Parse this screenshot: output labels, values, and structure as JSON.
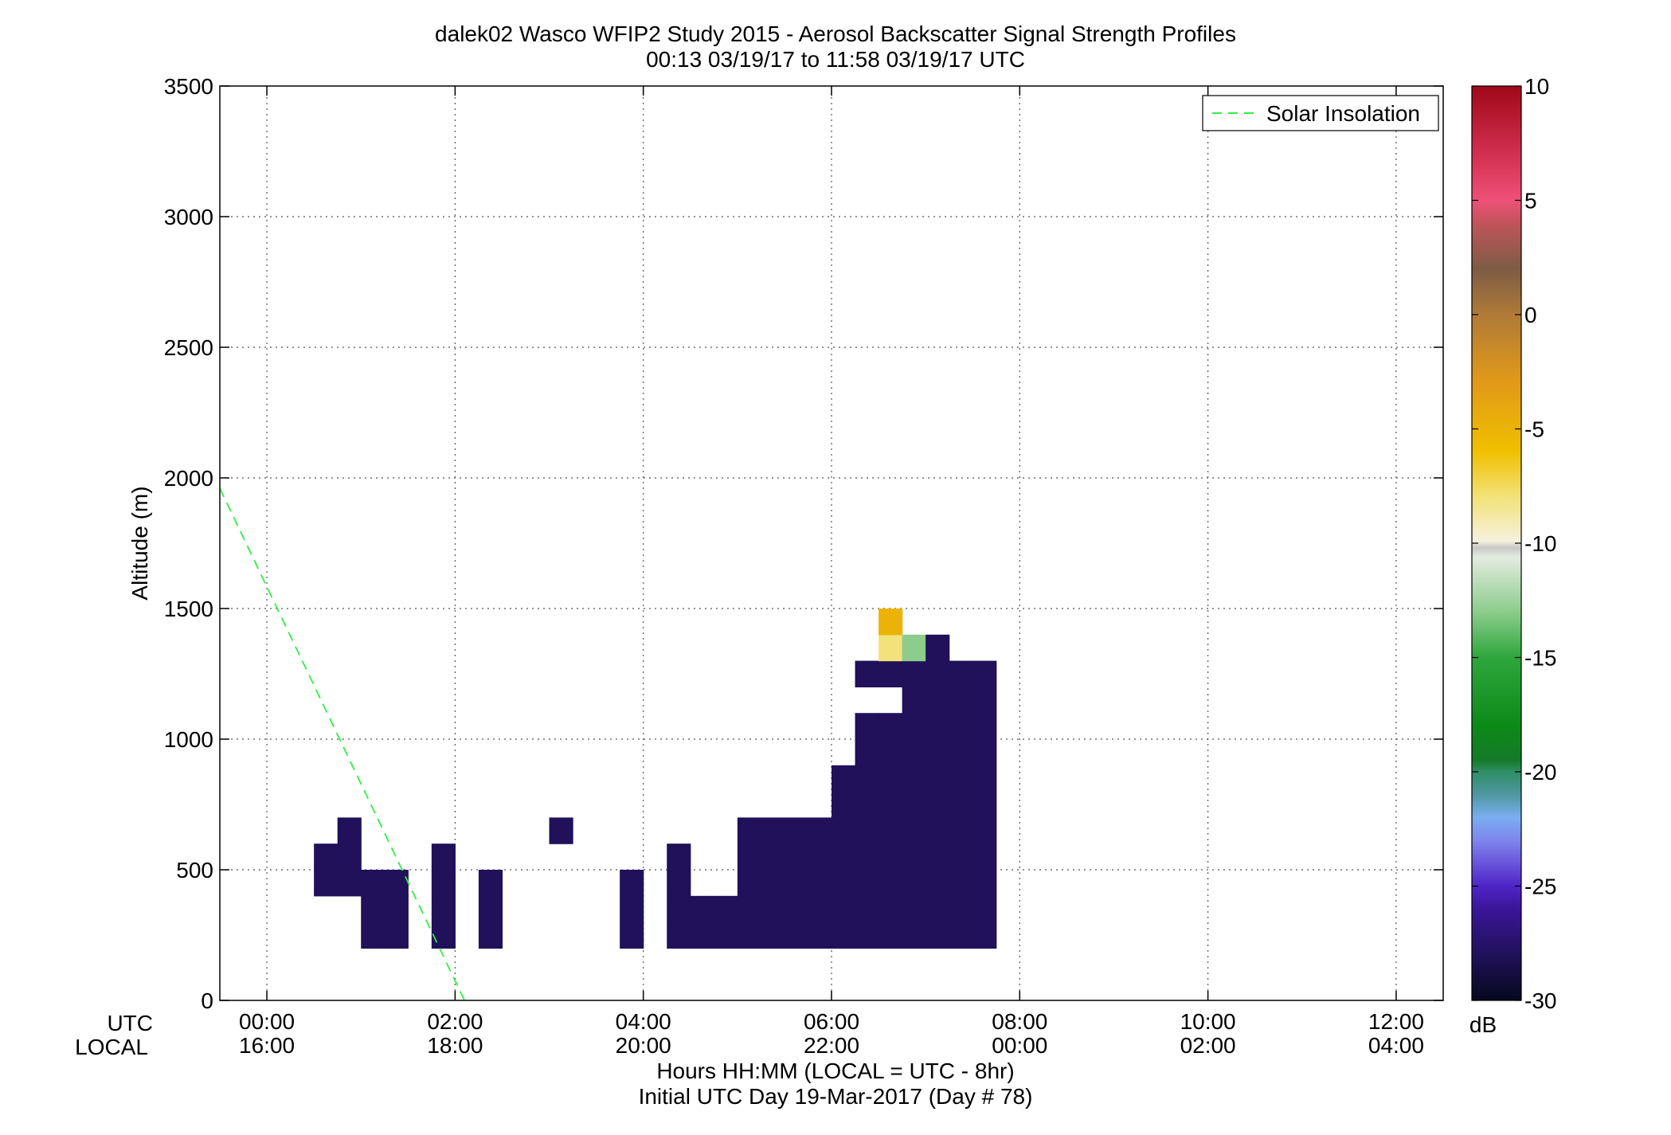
{
  "chart_data": {
    "type": "heatmap",
    "title": "dalek02 Wasco WFIP2 Study 2015 - Aerosol Backscatter Signal Strength Profiles",
    "subtitle": "00:13 03/19/17 to 11:58 03/19/17  UTC",
    "xlabel": "Hours HH:MM  (LOCAL = UTC - 8hr)",
    "xlabel2": "Initial UTC Day 19-Mar-2017 (Day # 78)",
    "ylabel": "Altitude (m)",
    "xlim": [
      -0.5,
      12.5
    ],
    "ylim": [
      0,
      3500
    ],
    "grid": true,
    "x_row_label_utc": "UTC",
    "x_row_label_local": "LOCAL",
    "x_ticks_utc": [
      "00:00",
      "02:00",
      "04:00",
      "06:00",
      "08:00",
      "10:00",
      "12:00"
    ],
    "x_ticks_local": [
      "16:00",
      "18:00",
      "20:00",
      "22:00",
      "00:00",
      "02:00",
      "04:00"
    ],
    "x_tick_values": [
      0,
      2,
      4,
      6,
      8,
      10,
      12
    ],
    "y_ticks": [
      0,
      500,
      1000,
      1500,
      2000,
      2500,
      3000,
      3500
    ],
    "cell_width_hours": 0.25,
    "cell_height_m": 100,
    "legend": {
      "position": "top-right",
      "entries": [
        {
          "label": "Solar Insolation",
          "color": "#33ee44",
          "style": "dashed"
        }
      ]
    },
    "solar_insolation_line": [
      [
        -0.5,
        1960
      ],
      [
        2.1,
        0
      ]
    ],
    "colorbar": {
      "label": "dB",
      "range": [
        -30,
        10
      ],
      "ticks": [
        -30,
        -25,
        -20,
        -15,
        -10,
        -5,
        0,
        5,
        10
      ],
      "stops": [
        [
          -30,
          "#05081e"
        ],
        [
          -28,
          "#20115a"
        ],
        [
          -26,
          "#3b1599"
        ],
        [
          -25,
          "#4e24c6"
        ],
        [
          -24,
          "#6a55dc"
        ],
        [
          -23,
          "#7e85ec"
        ],
        [
          -22,
          "#7aaef2"
        ],
        [
          -21,
          "#4f97a0"
        ],
        [
          -20,
          "#2e8e66"
        ],
        [
          -19.5,
          "#157a28"
        ],
        [
          -18,
          "#0c8a18"
        ],
        [
          -15,
          "#2ea63c"
        ],
        [
          -13,
          "#8ccd8c"
        ],
        [
          -10.6,
          "#e4ebe0"
        ],
        [
          -10.2,
          "#c8c8c8"
        ],
        [
          -9.9,
          "#f6f1dc"
        ],
        [
          -8,
          "#f3e27a"
        ],
        [
          -6,
          "#f0c000"
        ],
        [
          -3,
          "#e29a18"
        ],
        [
          0,
          "#b07a38"
        ],
        [
          2,
          "#7d5c44"
        ],
        [
          4,
          "#c0545a"
        ],
        [
          5,
          "#ee5078"
        ],
        [
          7,
          "#d23050"
        ],
        [
          10,
          "#a00818"
        ]
      ]
    },
    "cells": [
      [
        0.5,
        400,
        -28
      ],
      [
        0.5,
        500,
        -28
      ],
      [
        0.75,
        400,
        -28
      ],
      [
        0.75,
        500,
        -28
      ],
      [
        0.75,
        600,
        -28
      ],
      [
        1.0,
        200,
        -28
      ],
      [
        1.0,
        300,
        -28
      ],
      [
        1.0,
        400,
        -28
      ],
      [
        1.25,
        200,
        -28
      ],
      [
        1.25,
        300,
        -28
      ],
      [
        1.25,
        400,
        -28
      ],
      [
        1.75,
        200,
        -28
      ],
      [
        1.75,
        300,
        -28
      ],
      [
        1.75,
        400,
        -28
      ],
      [
        1.75,
        500,
        -28
      ],
      [
        2.25,
        200,
        -28
      ],
      [
        2.25,
        300,
        -28
      ],
      [
        2.25,
        400,
        -28
      ],
      [
        3.0,
        600,
        -28
      ],
      [
        3.75,
        200,
        -28
      ],
      [
        3.75,
        300,
        -28
      ],
      [
        3.75,
        400,
        -28
      ],
      [
        4.25,
        200,
        -28
      ],
      [
        4.25,
        300,
        -28
      ],
      [
        4.25,
        400,
        -28
      ],
      [
        4.25,
        500,
        -28
      ],
      [
        4.5,
        200,
        -28
      ],
      [
        4.5,
        300,
        -28
      ],
      [
        4.75,
        200,
        -28
      ],
      [
        4.75,
        300,
        -28
      ],
      [
        5.0,
        200,
        -28
      ],
      [
        5.0,
        300,
        -28
      ],
      [
        5.0,
        400,
        -28
      ],
      [
        5.0,
        500,
        -28
      ],
      [
        5.0,
        600,
        -28
      ],
      [
        5.25,
        200,
        -28
      ],
      [
        5.25,
        300,
        -28
      ],
      [
        5.25,
        400,
        -28
      ],
      [
        5.25,
        500,
        -28
      ],
      [
        5.25,
        600,
        -28
      ],
      [
        5.5,
        200,
        -28
      ],
      [
        5.5,
        300,
        -28
      ],
      [
        5.5,
        400,
        -28
      ],
      [
        5.5,
        500,
        -28
      ],
      [
        5.5,
        600,
        -28
      ],
      [
        5.75,
        200,
        -28
      ],
      [
        5.75,
        300,
        -28
      ],
      [
        5.75,
        400,
        -28
      ],
      [
        5.75,
        500,
        -28
      ],
      [
        5.75,
        600,
        -28
      ],
      [
        6.0,
        200,
        -28
      ],
      [
        6.0,
        300,
        -28
      ],
      [
        6.0,
        400,
        -28
      ],
      [
        6.0,
        500,
        -28
      ],
      [
        6.0,
        600,
        -28
      ],
      [
        6.0,
        700,
        -28
      ],
      [
        6.0,
        800,
        -28
      ],
      [
        6.25,
        200,
        -28
      ],
      [
        6.25,
        300,
        -28
      ],
      [
        6.25,
        400,
        -28
      ],
      [
        6.25,
        500,
        -28
      ],
      [
        6.25,
        600,
        -28
      ],
      [
        6.25,
        700,
        -28
      ],
      [
        6.25,
        800,
        -28
      ],
      [
        6.25,
        900,
        -28
      ],
      [
        6.25,
        1000,
        -28
      ],
      [
        6.25,
        1200,
        -28
      ],
      [
        6.5,
        200,
        -28
      ],
      [
        6.5,
        300,
        -28
      ],
      [
        6.5,
        400,
        -28
      ],
      [
        6.5,
        500,
        -28
      ],
      [
        6.5,
        600,
        -28
      ],
      [
        6.5,
        700,
        -28
      ],
      [
        6.5,
        800,
        -28
      ],
      [
        6.5,
        900,
        -28
      ],
      [
        6.5,
        1000,
        -28
      ],
      [
        6.5,
        1200,
        -28
      ],
      [
        6.5,
        1300,
        -8
      ],
      [
        6.5,
        1400,
        -5
      ],
      [
        6.75,
        200,
        -28
      ],
      [
        6.75,
        300,
        -28
      ],
      [
        6.75,
        400,
        -28
      ],
      [
        6.75,
        500,
        -28
      ],
      [
        6.75,
        600,
        -28
      ],
      [
        6.75,
        700,
        -28
      ],
      [
        6.75,
        800,
        -28
      ],
      [
        6.75,
        900,
        -28
      ],
      [
        6.75,
        1000,
        -28
      ],
      [
        6.75,
        1100,
        -28
      ],
      [
        6.75,
        1200,
        -28
      ],
      [
        6.75,
        1300,
        -13
      ],
      [
        7.0,
        200,
        -28
      ],
      [
        7.0,
        300,
        -28
      ],
      [
        7.0,
        400,
        -28
      ],
      [
        7.0,
        500,
        -28
      ],
      [
        7.0,
        600,
        -28
      ],
      [
        7.0,
        700,
        -28
      ],
      [
        7.0,
        800,
        -28
      ],
      [
        7.0,
        900,
        -28
      ],
      [
        7.0,
        1000,
        -28
      ],
      [
        7.0,
        1100,
        -28
      ],
      [
        7.0,
        1200,
        -28
      ],
      [
        7.0,
        1300,
        -28
      ],
      [
        7.25,
        200,
        -28
      ],
      [
        7.25,
        300,
        -28
      ],
      [
        7.25,
        400,
        -28
      ],
      [
        7.25,
        500,
        -28
      ],
      [
        7.25,
        600,
        -28
      ],
      [
        7.25,
        700,
        -28
      ],
      [
        7.25,
        800,
        -28
      ],
      [
        7.25,
        900,
        -28
      ],
      [
        7.25,
        1000,
        -28
      ],
      [
        7.25,
        1100,
        -28
      ],
      [
        7.25,
        1200,
        -28
      ],
      [
        7.5,
        200,
        -28
      ],
      [
        7.5,
        300,
        -28
      ],
      [
        7.5,
        400,
        -28
      ],
      [
        7.5,
        500,
        -28
      ],
      [
        7.5,
        600,
        -28
      ],
      [
        7.5,
        700,
        -28
      ],
      [
        7.5,
        800,
        -28
      ],
      [
        7.5,
        900,
        -28
      ],
      [
        7.5,
        1000,
        -28
      ],
      [
        7.5,
        1100,
        -28
      ],
      [
        7.5,
        1200,
        -28
      ]
    ]
  }
}
